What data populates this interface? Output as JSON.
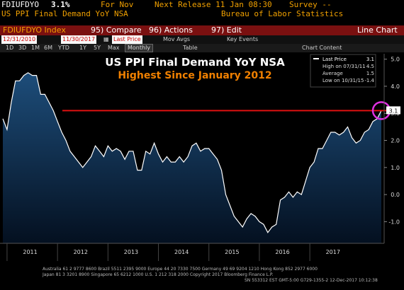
{
  "header": {
    "ticker": "FDIUFDYO",
    "value": "3.1%",
    "for_label": "For Nov",
    "next_release": "Next Release 11 Jan 08:30",
    "survey": "Survey --",
    "name": "US PPI Final Demand YoY NSA",
    "source": "Bureau of Labor Statistics"
  },
  "toolbar": {
    "index_label": "FDIUFDYO Index",
    "compare": "95) Compare",
    "actions": "96) Actions",
    "edit": "97) Edit",
    "view": "Line Chart"
  },
  "controls": {
    "start_date": "12/31/2010",
    "end_date": "11/30/2017",
    "price_select": "Last Price",
    "mov_avgs": "Mov Avgs",
    "key_events": "Key Events",
    "periods": [
      "1D",
      "3D",
      "1M",
      "6M",
      "YTD",
      "1Y",
      "5Y",
      "Max"
    ],
    "frequency": "Monthly",
    "table": "Table",
    "chart_content": "Chart Content"
  },
  "legend": {
    "last_price_label": "Last Price",
    "last_price_value": "3.1",
    "high_label": "High on 07/31/11",
    "high_value": "4.5",
    "average_label": "Average",
    "average_value": "1.5",
    "low_label": "Low on 10/31/15",
    "low_value": "-1.4"
  },
  "colors": {
    "accent": "#f0a000",
    "toolbar": "#7a1010",
    "line": "#ffffff",
    "area_top": "#1d4d7a",
    "area_bottom": "#041020",
    "highlight": "#e01010",
    "circle": "#e030e0",
    "title_orange": "#f08000"
  },
  "footer": {
    "line1": "Australia 61 2 9777 8600 Brazil 5511 2395 9000 Europe 44 20 7330 7500 Germany 49 69 9204 1210 Hong Kong 852 2977 6000",
    "line2": "Japan 81 3 3201 8900        Singapore 65 6212 1000        U.S. 1 212 318 2000       Copyright 2017 Bloomberg Finance L.P.",
    "line3": "SN 553312 EST  GMT-5:00 G729-1355-2 12-Dec-2017 10:12:38"
  },
  "chart_data": {
    "type": "area",
    "title": "US PPI Final Demand YoY NSA",
    "subtitle": "Highest Since January 2012",
    "xlabel": "",
    "ylabel": "",
    "ylim": [
      -1.8,
      5.2
    ],
    "yticks": [
      -1.0,
      0.0,
      1.0,
      2.0,
      3.0,
      4.0,
      5.0
    ],
    "ytick_labels": [
      "-1.0",
      "0.0",
      "1.0",
      "2.0",
      "3.0",
      "4.0",
      "5.0"
    ],
    "year_labels": [
      "2011",
      "2012",
      "2013",
      "2014",
      "2015",
      "2016",
      "2017"
    ],
    "x_start": "2010-12",
    "x_end": "2017-11",
    "reference_line": 3.1,
    "last_value_label": "3.1",
    "grid": false,
    "series": [
      {
        "values": [
          2.8,
          2.4,
          3.4,
          4.2,
          4.2,
          4.4,
          4.5,
          4.4,
          4.4,
          3.7,
          3.7,
          3.4,
          3.1,
          2.7,
          2.3,
          2.0,
          1.6,
          1.4,
          1.2,
          1.0,
          1.2,
          1.4,
          1.8,
          1.6,
          1.4,
          1.8,
          1.6,
          1.7,
          1.6,
          1.3,
          1.6,
          1.6,
          0.9,
          0.9,
          1.6,
          1.5,
          1.9,
          1.5,
          1.2,
          1.4,
          1.2,
          1.2,
          1.4,
          1.2,
          1.4,
          1.8,
          1.9,
          1.6,
          1.7,
          1.7,
          1.5,
          1.3,
          0.9,
          0.0,
          -0.4,
          -0.8,
          -1.0,
          -1.2,
          -0.9,
          -0.7,
          -0.8,
          -1.0,
          -1.1,
          -1.4,
          -1.2,
          -1.1,
          -0.2,
          -0.1,
          0.1,
          -0.1,
          0.1,
          0.0,
          0.5,
          1.0,
          1.2,
          1.7,
          1.7,
          2.0,
          2.3,
          2.3,
          2.2,
          2.3,
          2.5,
          2.1,
          1.9,
          2.0,
          2.3,
          2.4,
          2.7,
          2.8,
          3.1
        ]
      }
    ]
  }
}
